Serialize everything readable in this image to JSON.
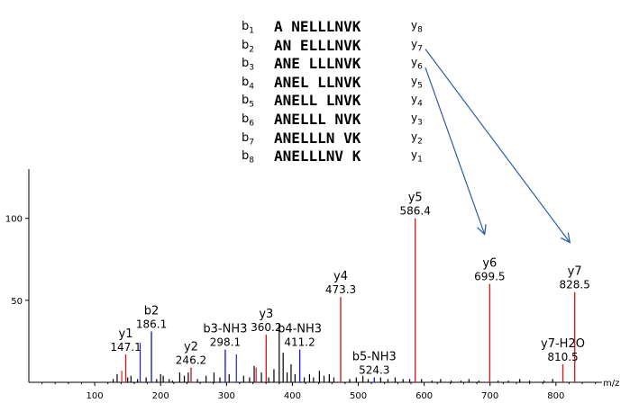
{
  "fragments": [
    {
      "b": "1",
      "seq": "A NELLLNVK",
      "y": "8"
    },
    {
      "b": "2",
      "seq": "AN ELLLNVK",
      "y": "7"
    },
    {
      "b": "3",
      "seq": "ANE LLLNVK",
      "y": "6"
    },
    {
      "b": "4",
      "seq": "ANEL LLNVK",
      "y": "5"
    },
    {
      "b": "5",
      "seq": "ANELL LNVK",
      "y": "4"
    },
    {
      "b": "6",
      "seq": "ANELLL NVK",
      "y": "3"
    },
    {
      "b": "7",
      "seq": "ANELLLN VK",
      "y": "2"
    },
    {
      "b": "8",
      "seq": "ANELLLNV K",
      "y": "1"
    }
  ],
  "fragment_letters": {
    "b": "b",
    "y": "y"
  },
  "chart_data": {
    "type": "bar",
    "xlabel": "m/z",
    "ylabel": "",
    "xlim": [
      0,
      870
    ],
    "ylim": [
      0,
      130
    ],
    "x_ticks": [
      100,
      200,
      300,
      400,
      500,
      600,
      700,
      800
    ],
    "y_ticks": [
      50,
      100
    ],
    "colors": {
      "y": "#cc2222",
      "b": "#2222cc",
      "other": "#000000",
      "arrow": "#2a5ea8"
    },
    "labeled_peaks": [
      {
        "ion": "y1",
        "mz": 147.1,
        "intensity": 17,
        "series": "y",
        "mz_label": "147.1"
      },
      {
        "ion": "b2",
        "mz": 186.1,
        "intensity": 31,
        "series": "b",
        "mz_label": "186.1"
      },
      {
        "ion": "y2",
        "mz": 246.2,
        "intensity": 9,
        "series": "y",
        "mz_label": "246.2"
      },
      {
        "ion": "b3-NH3",
        "mz": 298.1,
        "intensity": 20,
        "series": "b",
        "mz_label": "298.1"
      },
      {
        "ion": "y3",
        "mz": 360.2,
        "intensity": 29,
        "series": "y",
        "mz_label": "360.2"
      },
      {
        "ion": "b4-NH3",
        "mz": 411.2,
        "intensity": 20,
        "series": "b",
        "mz_label": "411.2"
      },
      {
        "ion": "y4",
        "mz": 473.3,
        "intensity": 52,
        "series": "y",
        "mz_label": "473.3"
      },
      {
        "ion": "b5-NH3",
        "mz": 524.3,
        "intensity": 3,
        "series": "b",
        "mz_label": "524.3"
      },
      {
        "ion": "y5",
        "mz": 586.4,
        "intensity": 100,
        "series": "y",
        "mz_label": "586.4"
      },
      {
        "ion": "y6",
        "mz": 699.5,
        "intensity": 60,
        "series": "y",
        "mz_label": "699.5"
      },
      {
        "ion": "y7-H2O",
        "mz": 810.5,
        "intensity": 11,
        "series": "y",
        "mz_label": "810.5"
      },
      {
        "ion": "y7",
        "mz": 828.5,
        "intensity": 55,
        "series": "y",
        "mz_label": "828.5"
      }
    ],
    "minor_peaks": [
      {
        "mz": 128,
        "intensity": 2,
        "series": "other"
      },
      {
        "mz": 134,
        "intensity": 5,
        "series": "other"
      },
      {
        "mz": 141,
        "intensity": 7,
        "series": "y"
      },
      {
        "mz": 150,
        "intensity": 3,
        "series": "other"
      },
      {
        "mz": 155,
        "intensity": 4,
        "series": "other"
      },
      {
        "mz": 165,
        "intensity": 2,
        "series": "other"
      },
      {
        "mz": 169,
        "intensity": 24,
        "series": "b"
      },
      {
        "mz": 178,
        "intensity": 3,
        "series": "other"
      },
      {
        "mz": 194,
        "intensity": 2,
        "series": "other"
      },
      {
        "mz": 200,
        "intensity": 5,
        "series": "other"
      },
      {
        "mz": 204,
        "intensity": 4,
        "series": "other"
      },
      {
        "mz": 213,
        "intensity": 2,
        "series": "other"
      },
      {
        "mz": 218,
        "intensity": 1,
        "series": "other"
      },
      {
        "mz": 229,
        "intensity": 6,
        "series": "other"
      },
      {
        "mz": 236,
        "intensity": 4,
        "series": "other"
      },
      {
        "mz": 242,
        "intensity": 6,
        "series": "other"
      },
      {
        "mz": 256,
        "intensity": 2,
        "series": "other"
      },
      {
        "mz": 269,
        "intensity": 4,
        "series": "other"
      },
      {
        "mz": 281,
        "intensity": 6,
        "series": "other"
      },
      {
        "mz": 290,
        "intensity": 3,
        "series": "other"
      },
      {
        "mz": 304,
        "intensity": 5,
        "series": "other"
      },
      {
        "mz": 315,
        "intensity": 17,
        "series": "b"
      },
      {
        "mz": 326,
        "intensity": 4,
        "series": "other"
      },
      {
        "mz": 335,
        "intensity": 3,
        "series": "other"
      },
      {
        "mz": 342,
        "intensity": 10,
        "series": "other"
      },
      {
        "mz": 345,
        "intensity": 9,
        "series": "y"
      },
      {
        "mz": 353,
        "intensity": 6,
        "series": "other"
      },
      {
        "mz": 364,
        "intensity": 3,
        "series": "other"
      },
      {
        "mz": 372,
        "intensity": 8,
        "series": "other"
      },
      {
        "mz": 380,
        "intensity": 36,
        "series": "other"
      },
      {
        "mz": 386,
        "intensity": 18,
        "series": "other"
      },
      {
        "mz": 392,
        "intensity": 6,
        "series": "other"
      },
      {
        "mz": 398,
        "intensity": 11,
        "series": "other"
      },
      {
        "mz": 404,
        "intensity": 5,
        "series": "other"
      },
      {
        "mz": 418,
        "intensity": 3,
        "series": "other"
      },
      {
        "mz": 426,
        "intensity": 5,
        "series": "other"
      },
      {
        "mz": 432,
        "intensity": 3,
        "series": "other"
      },
      {
        "mz": 441,
        "intensity": 7,
        "series": "other"
      },
      {
        "mz": 448,
        "intensity": 4,
        "series": "other"
      },
      {
        "mz": 456,
        "intensity": 5,
        "series": "other"
      },
      {
        "mz": 463,
        "intensity": 3,
        "series": "other"
      },
      {
        "mz": 487,
        "intensity": 2,
        "series": "other"
      },
      {
        "mz": 497,
        "intensity": 3,
        "series": "other"
      },
      {
        "mz": 507,
        "intensity": 4,
        "series": "other"
      },
      {
        "mz": 515,
        "intensity": 2,
        "series": "other"
      },
      {
        "mz": 534,
        "intensity": 3,
        "series": "other"
      },
      {
        "mz": 545,
        "intensity": 2,
        "series": "other"
      },
      {
        "mz": 556,
        "intensity": 3,
        "series": "other"
      },
      {
        "mz": 568,
        "intensity": 2,
        "series": "other"
      },
      {
        "mz": 578,
        "intensity": 2,
        "series": "other"
      },
      {
        "mz": 596,
        "intensity": 2,
        "series": "other"
      },
      {
        "mz": 612,
        "intensity": 1,
        "series": "other"
      },
      {
        "mz": 625,
        "intensity": 2,
        "series": "other"
      },
      {
        "mz": 641,
        "intensity": 1,
        "series": "other"
      },
      {
        "mz": 656,
        "intensity": 1,
        "series": "other"
      },
      {
        "mz": 668,
        "intensity": 2,
        "series": "other"
      },
      {
        "mz": 683,
        "intensity": 1,
        "series": "other"
      },
      {
        "mz": 712,
        "intensity": 1,
        "series": "other"
      },
      {
        "mz": 728,
        "intensity": 1,
        "series": "other"
      },
      {
        "mz": 745,
        "intensity": 2,
        "series": "other"
      },
      {
        "mz": 760,
        "intensity": 1,
        "series": "other"
      },
      {
        "mz": 782,
        "intensity": 1,
        "series": "other"
      },
      {
        "mz": 795,
        "intensity": 2,
        "series": "other"
      }
    ],
    "arrows": [
      {
        "from": "y7",
        "to_ion": "y7"
      },
      {
        "from": "y6",
        "to_ion": "y6"
      }
    ]
  }
}
